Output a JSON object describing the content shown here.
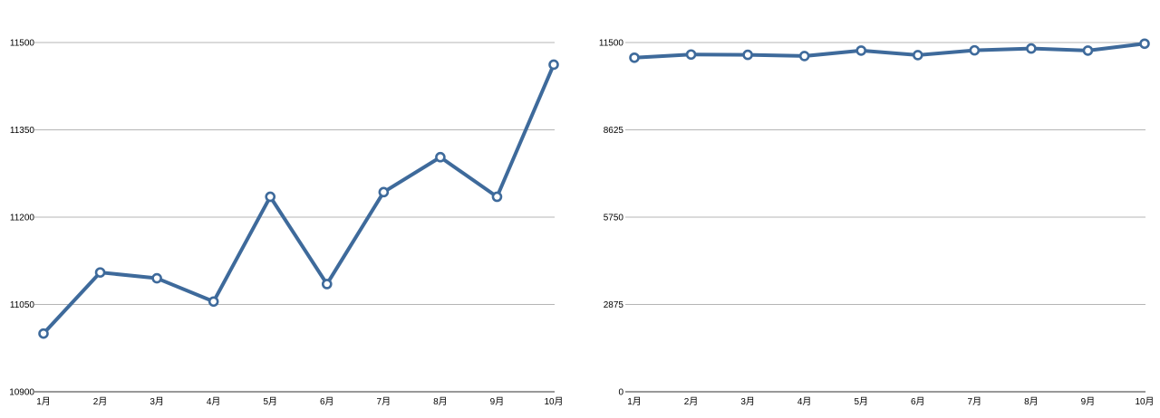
{
  "chart_data": [
    {
      "type": "line",
      "categories": [
        "1月",
        "2月",
        "3月",
        "4月",
        "5月",
        "6月",
        "7月",
        "8月",
        "9月",
        "10月"
      ],
      "series": [
        {
          "values": [
            11000,
            11105,
            11095,
            11055,
            11235,
            11085,
            11243,
            11303,
            11235,
            11462
          ]
        }
      ],
      "yticks": [
        "11500",
        "11350",
        "11200",
        "11050",
        "10900"
      ],
      "ytick_values": [
        11500,
        11350,
        11200,
        11050,
        10900
      ],
      "ylim": [
        10900,
        11500
      ],
      "grid": true,
      "line_color": "#3E6A9B"
    },
    {
      "type": "line",
      "categories": [
        "1月",
        "2月",
        "3月",
        "4月",
        "5月",
        "6月",
        "7月",
        "8月",
        "9月",
        "10月"
      ],
      "series": [
        {
          "values": [
            11000,
            11105,
            11095,
            11055,
            11235,
            11085,
            11243,
            11303,
            11235,
            11462
          ]
        }
      ],
      "yticks": [
        "11500",
        "8625",
        "5750",
        "2875",
        "0"
      ],
      "ytick_values": [
        11500,
        8625,
        5750,
        2875,
        0
      ],
      "ylim": [
        0,
        11500
      ],
      "grid": true,
      "line_color": "#3E6A9B"
    }
  ]
}
